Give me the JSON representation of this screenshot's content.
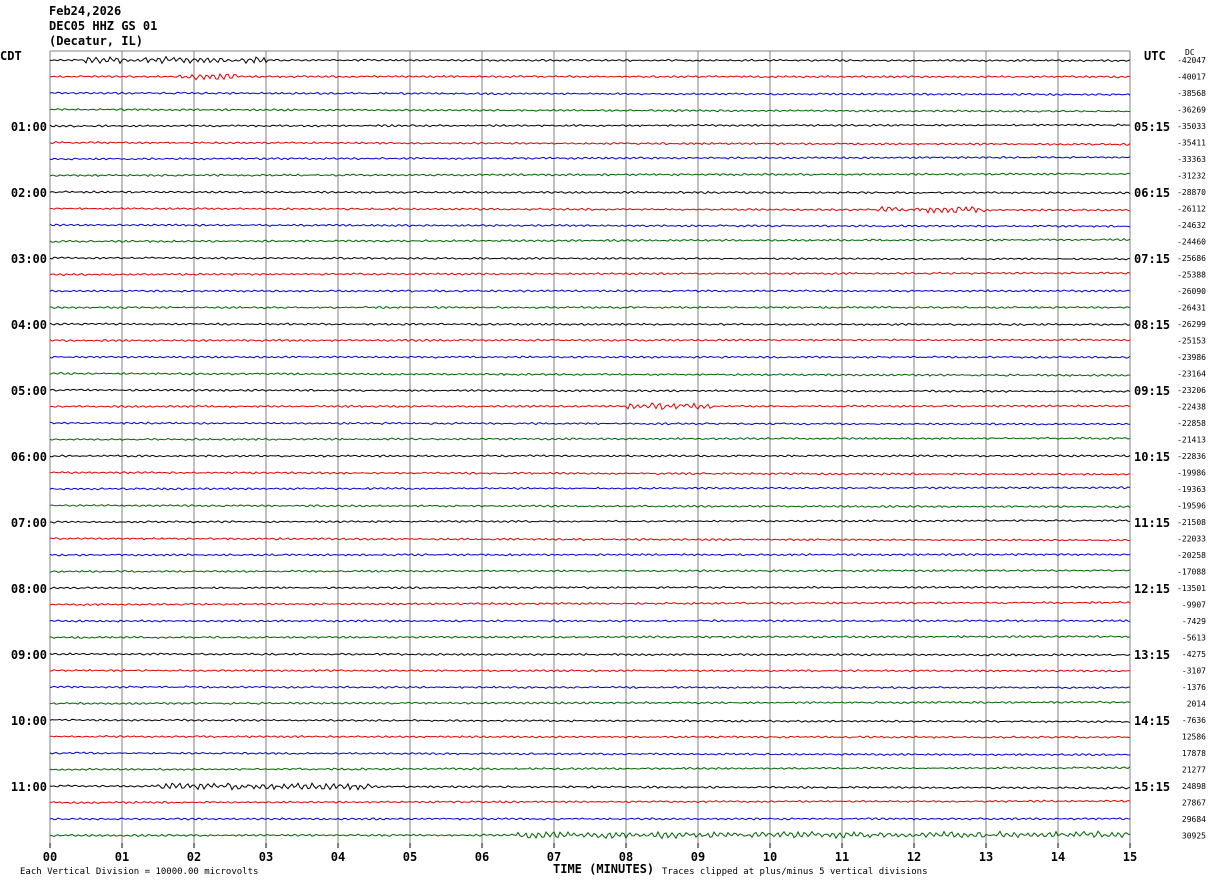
{
  "header": {
    "date": "Feb24,2026",
    "station": "DEC05 HHZ GS 01",
    "location": "(Decatur, IL)"
  },
  "left_timezone": "CDT",
  "right_timezone": "UTC",
  "corner_label": "DC",
  "footer": {
    "xlabel": "TIME (MINUTES)",
    "scale_note": "Each Vertical Division = 10000.00 microvolts",
    "clip_note": "Traces clipped at plus/minus 5 vertical divisions"
  },
  "colors": {
    "trace_cycle": [
      "#000000",
      "#e00000",
      "#0000d0",
      "#006400"
    ],
    "grid": "#808080"
  },
  "chart_data": {
    "type": "line",
    "title": "DEC05 HHZ GS 01 (Decatur, IL) Feb24,2026",
    "xlabel": "TIME (MINUTES)",
    "x_ticks": [
      "00",
      "01",
      "02",
      "03",
      "04",
      "05",
      "06",
      "07",
      "08",
      "09",
      "10",
      "11",
      "12",
      "13",
      "14",
      "15"
    ],
    "xlim": [
      0,
      15
    ],
    "rows": 48,
    "minutes_per_row": 15,
    "left_hour_labels": [
      "01:00",
      "02:00",
      "03:00",
      "04:00",
      "05:00",
      "06:00",
      "07:00",
      "08:00",
      "09:00",
      "10:00",
      "11:00"
    ],
    "right_hour_labels": [
      "05:15",
      "06:15",
      "07:15",
      "08:15",
      "09:15",
      "10:15",
      "11:15",
      "12:15",
      "13:15",
      "14:15",
      "15:15"
    ],
    "row_offsets": [
      "-42047",
      "-40017",
      "-38568",
      "-36269",
      "-35033",
      "-35411",
      "-33363",
      "-31232",
      "-28870",
      "-26112",
      "-24632",
      "-24460",
      "-25686",
      "-25388",
      "-26090",
      "-26431",
      "-26299",
      "-25153",
      "-23986",
      "-23164",
      "-23206",
      "-22438",
      "-22858",
      "-21413",
      "-22836",
      "-19986",
      "-19363",
      "-19596",
      "-21508",
      "-22033",
      "-20258",
      "-17088",
      "-13501",
      "-9907",
      "-7429",
      "-5613",
      "-4275",
      "-3107",
      "-1376",
      "2014",
      "-7636",
      "12586",
      "17878",
      "21277",
      "24898",
      "27867",
      "29684",
      "30925"
    ],
    "events": [
      {
        "row": 0,
        "start_min": 0.5,
        "end_min": 3.0,
        "amplitude": "elevated"
      },
      {
        "row": 1,
        "start_min": 1.8,
        "end_min": 2.6,
        "amplitude": "elevated"
      },
      {
        "row": 9,
        "start_min": 11.5,
        "end_min": 13.0,
        "amplitude": "elevated"
      },
      {
        "row": 21,
        "start_min": 8.0,
        "end_min": 9.2,
        "amplitude": "elevated"
      },
      {
        "row": 44,
        "start_min": 1.5,
        "end_min": 4.5,
        "amplitude": "elevated"
      },
      {
        "row": 47,
        "start_min": 6.5,
        "end_min": 15.0,
        "amplitude": "elevated"
      }
    ]
  }
}
